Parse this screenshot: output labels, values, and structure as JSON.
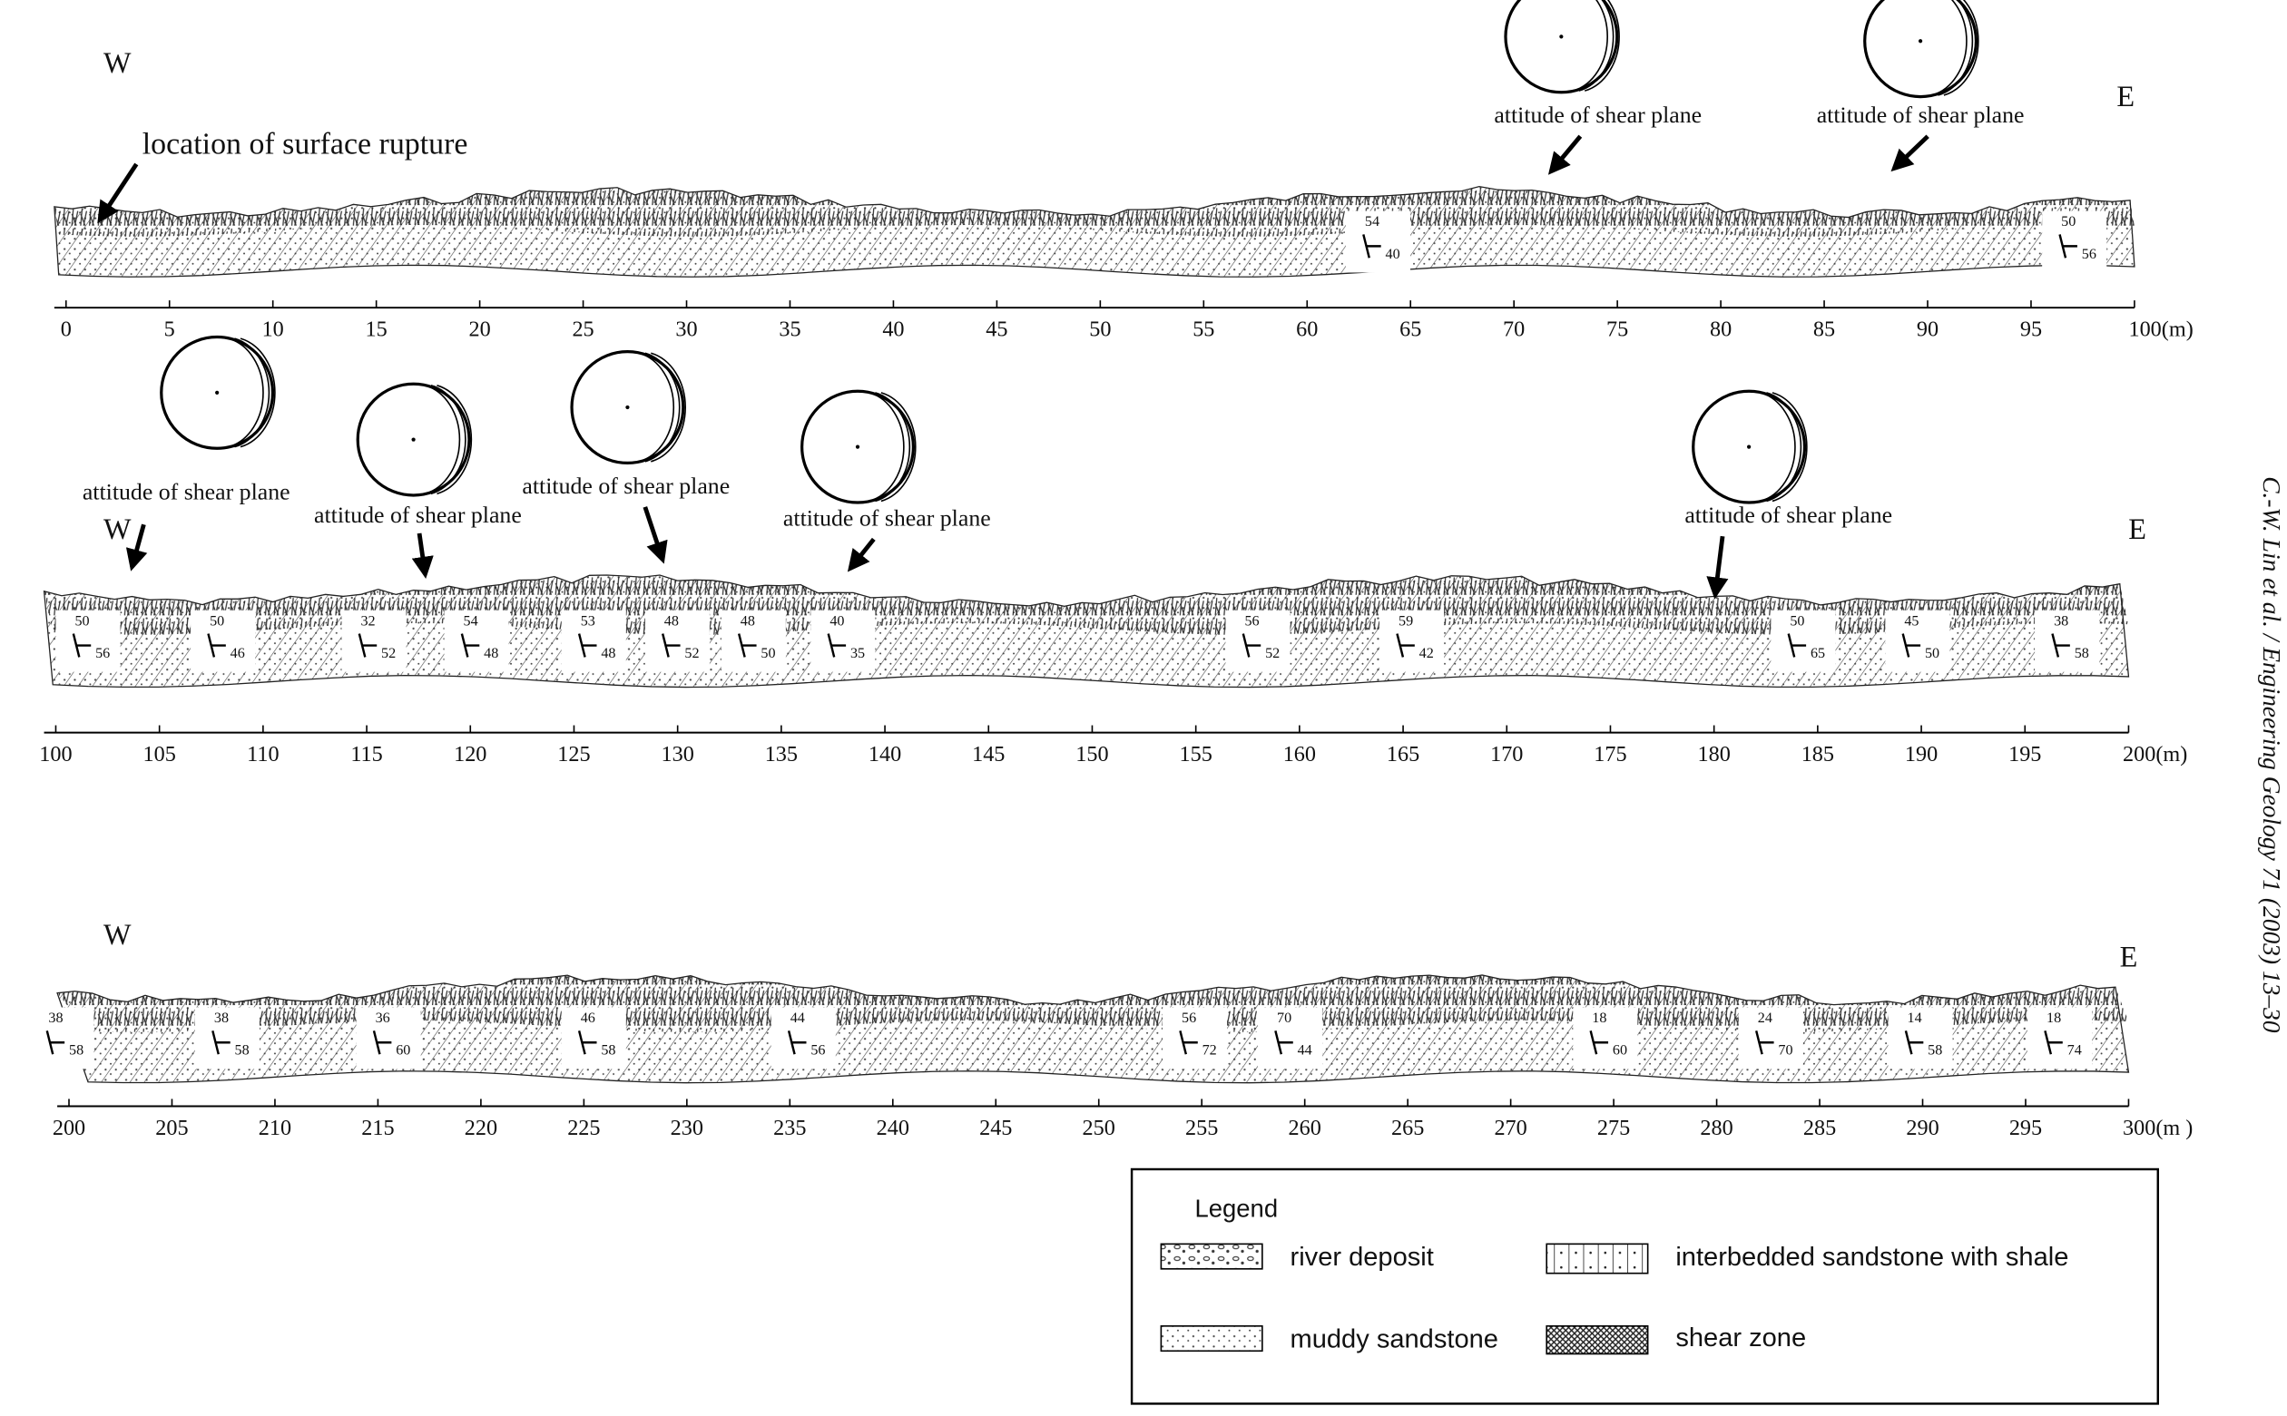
{
  "panels": [
    {
      "west": "W",
      "east": "E",
      "ticks": [
        "0",
        "5",
        "10",
        "15",
        "20",
        "25",
        "30",
        "35",
        "40",
        "45",
        "50",
        "55",
        "60",
        "65",
        "70",
        "75",
        "80",
        "85",
        "90",
        "95",
        "100(m)"
      ],
      "annotation": "location of surface rupture",
      "stereonets": [
        "attitude of shear plane",
        "attitude of shear plane"
      ],
      "attitudes": [
        {
          "strike": 54,
          "dip": 40
        },
        {
          "strike": 50,
          "dip": 56
        }
      ]
    },
    {
      "west": "W",
      "east": "E",
      "ticks": [
        "100",
        "105",
        "110",
        "115",
        "120",
        "125",
        "130",
        "135",
        "140",
        "145",
        "150",
        "155",
        "160",
        "165",
        "170",
        "175",
        "180",
        "185",
        "190",
        "195",
        "200(m)"
      ],
      "stereonets": [
        "attitude  of shear plane",
        "attitude  of shear plane",
        "attitude  of shear plane",
        "attitude  of shear plane",
        "attitude of shear plane"
      ],
      "attitudes": [
        {
          "strike": 50,
          "dip": 56
        },
        {
          "strike": 50,
          "dip": 46
        },
        {
          "strike": 32,
          "dip": 52
        },
        {
          "strike": 54,
          "dip": 48
        },
        {
          "strike": 53,
          "dip": 48
        },
        {
          "strike": 48,
          "dip": 52
        },
        {
          "strike": 48,
          "dip": 50
        },
        {
          "strike": 40,
          "dip": 35
        },
        {
          "strike": 56,
          "dip": 52
        },
        {
          "strike": 59,
          "dip": 42
        },
        {
          "strike": 50,
          "dip": 65
        },
        {
          "strike": 45,
          "dip": 50
        },
        {
          "strike": 38,
          "dip": 58
        }
      ]
    },
    {
      "west": "W",
      "east": "E",
      "ticks": [
        "200",
        "205",
        "210",
        "215",
        "220",
        "225",
        "230",
        "235",
        "240",
        "245",
        "250",
        "255",
        "260",
        "265",
        "270",
        "275",
        "280",
        "285",
        "290",
        "295",
        "300(m )"
      ],
      "stereonets": [],
      "attitudes": [
        {
          "strike": 38,
          "dip": 58
        },
        {
          "strike": 38,
          "dip": 58
        },
        {
          "strike": 36,
          "dip": 60
        },
        {
          "strike": 46,
          "dip": 58
        },
        {
          "strike": 44,
          "dip": 56
        },
        {
          "strike": 56,
          "dip": 72
        },
        {
          "strike": 70,
          "dip": 44
        },
        {
          "strike": 18,
          "dip": 60
        },
        {
          "strike": 24,
          "dip": 70
        },
        {
          "strike": 14,
          "dip": 58
        },
        {
          "strike": 18,
          "dip": 74
        }
      ]
    }
  ],
  "legend": {
    "title": "Legend",
    "items": [
      "river deposit",
      "interbedded sandstone with shale",
      "muddy sandstone",
      "shear zone"
    ]
  },
  "citation": "C.-W. Lin et al. / Engineering Geology 71 (2003) 13–30"
}
